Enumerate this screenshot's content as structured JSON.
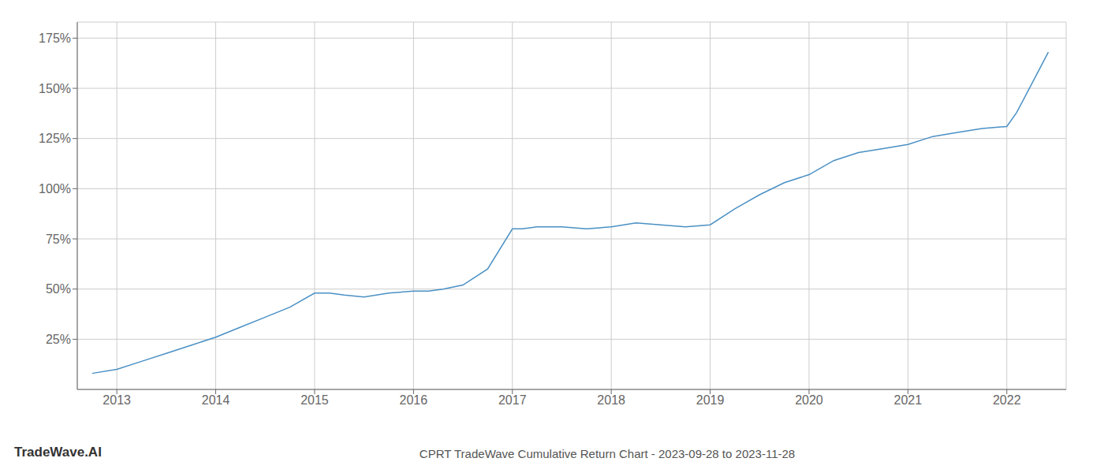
{
  "chart_data": {
    "type": "line",
    "title": "CPRT TradeWave Cumulative Return Chart - 2023-09-28 to 2023-11-28",
    "annotations": [
      "TradeWave.AI"
    ],
    "x": [
      2012.75,
      2013.0,
      2013.25,
      2013.5,
      2013.75,
      2014.0,
      2014.25,
      2014.5,
      2014.75,
      2015.0,
      2015.15,
      2015.3,
      2015.5,
      2015.75,
      2016.0,
      2016.15,
      2016.3,
      2016.5,
      2016.75,
      2017.0,
      2017.1,
      2017.25,
      2017.5,
      2017.75,
      2018.0,
      2018.25,
      2018.5,
      2018.75,
      2019.0,
      2019.25,
      2019.5,
      2019.75,
      2020.0,
      2020.25,
      2020.5,
      2020.75,
      2021.0,
      2021.25,
      2021.5,
      2021.75,
      2022.0,
      2022.1,
      2022.25,
      2022.42
    ],
    "values": [
      8,
      10,
      14,
      18,
      22,
      26,
      31,
      36,
      41,
      48,
      48,
      47,
      46,
      48,
      49,
      49,
      50,
      52,
      60,
      80,
      80,
      81,
      81,
      80,
      81,
      83,
      82,
      81,
      82,
      90,
      97,
      103,
      107,
      114,
      118,
      120,
      122,
      126,
      128,
      130,
      131,
      138,
      152,
      168
    ],
    "color": "#4a90c4",
    "xlim": [
      2012.6,
      2022.6
    ],
    "ylim": [
      0,
      183
    ],
    "xticks": [
      2013,
      2014,
      2015,
      2016,
      2017,
      2018,
      2019,
      2020,
      2021,
      2022
    ],
    "yticks": [
      {
        "value": 25,
        "label": "25%"
      },
      {
        "value": 50,
        "label": "50%"
      },
      {
        "value": 75,
        "label": "75%"
      },
      {
        "value": 100,
        "label": "100%"
      },
      {
        "value": 125,
        "label": "125%"
      },
      {
        "value": 150,
        "label": "150%"
      },
      {
        "value": 175,
        "label": "175%"
      }
    ],
    "grid": true
  }
}
